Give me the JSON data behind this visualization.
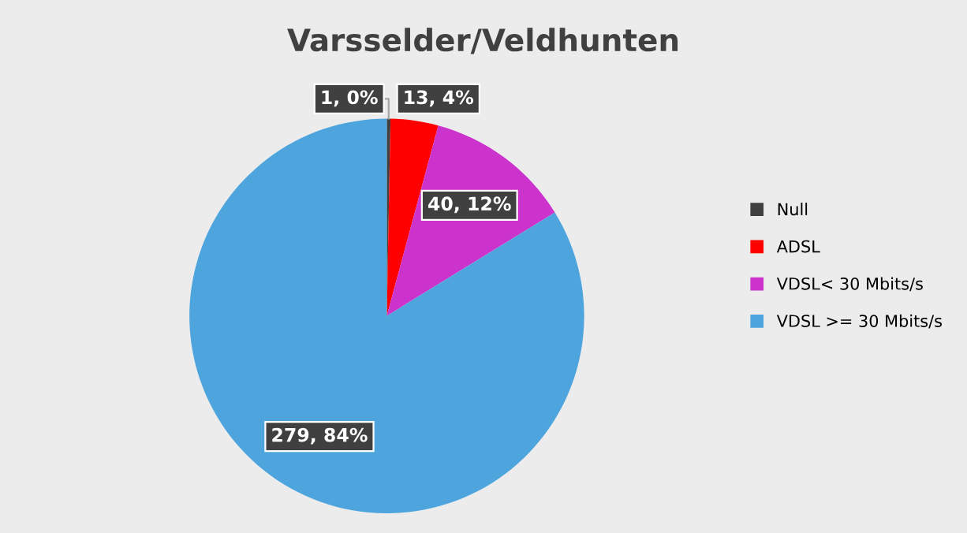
{
  "chart_data": {
    "type": "pie",
    "title": "Varsselder/Veldhunten",
    "categories": [
      "Null",
      "ADSL",
      "VDSL< 30 Mbits/s",
      "VDSL >= 30 Mbits/s"
    ],
    "values": [
      1,
      13,
      40,
      279
    ],
    "colors": [
      "#404040",
      "#ff0000",
      "#cc33cc",
      "#4ea5de"
    ],
    "value_labels": [
      "1, 0%",
      "13, 4%",
      "40, 12%",
      "279, 84%"
    ],
    "legend": "right"
  }
}
